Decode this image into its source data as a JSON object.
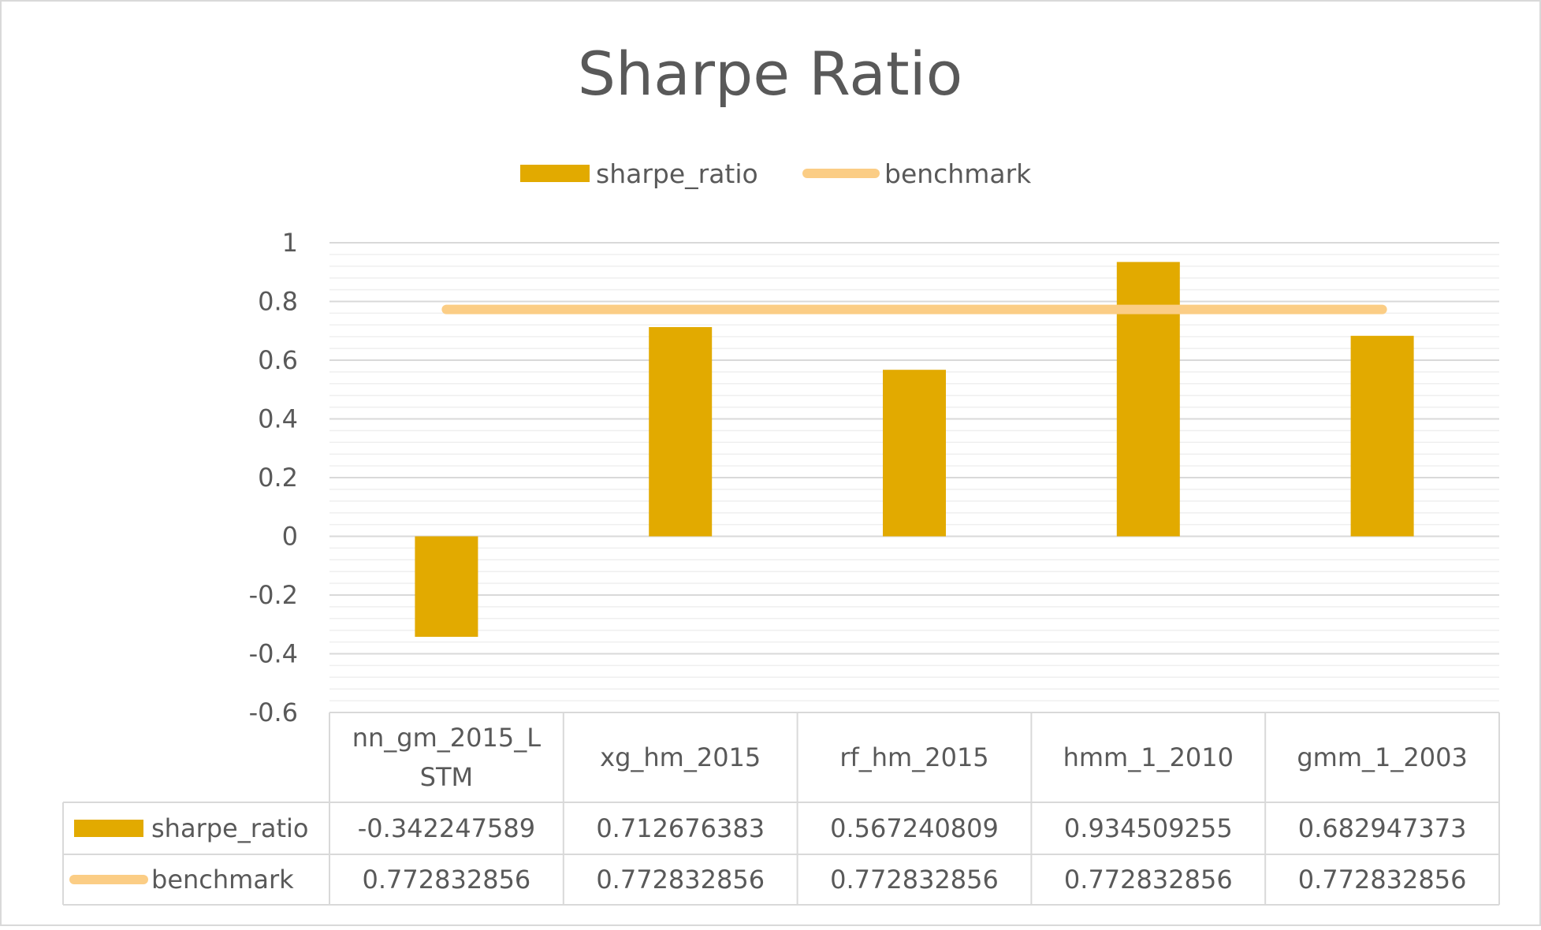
{
  "chart_data": {
    "type": "bar",
    "title": "Sharpe Ratio",
    "categories": [
      [
        "nn_gm_2015_L",
        "STM"
      ],
      [
        "xg_hm_2015"
      ],
      [
        "rf_hm_2015"
      ],
      [
        "hmm_1_2010"
      ],
      [
        "gmm_1_2003"
      ]
    ],
    "series": [
      {
        "name": "sharpe_ratio",
        "type": "bar",
        "color": "#E2AA00",
        "values": [
          -0.342247589,
          0.712676383,
          0.567240809,
          0.934509255,
          0.682947373
        ],
        "value_labels": [
          "-0.342247589",
          "0.712676383",
          "0.567240809",
          "0.934509255",
          "0.682947373"
        ]
      },
      {
        "name": "benchmark",
        "type": "line",
        "color": "#FBCD85",
        "values": [
          0.772832856,
          0.772832856,
          0.772832856,
          0.772832856,
          0.772832856
        ],
        "value_labels": [
          "0.772832856",
          "0.772832856",
          "0.772832856",
          "0.772832856",
          "0.772832856"
        ]
      }
    ],
    "ylim": [
      -0.6,
      1
    ],
    "yticks": [
      1,
      0.8,
      0.6,
      0.4,
      0.2,
      0,
      -0.2,
      -0.4,
      -0.6
    ],
    "ytick_labels": [
      "1",
      "0.8",
      "0.6",
      "0.4",
      "0.2",
      "0",
      "-0.2",
      "-0.4",
      "-0.6"
    ],
    "minor_grid_step": 0.04,
    "grid": true,
    "legend": "top-center",
    "data_table": true
  }
}
